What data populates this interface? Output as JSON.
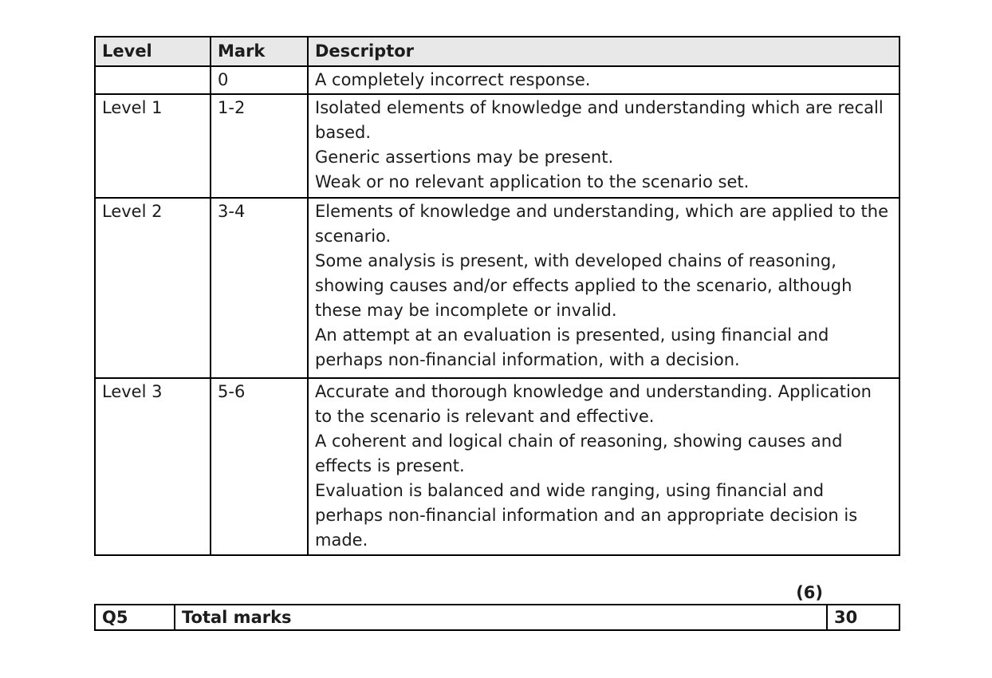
{
  "colors": {
    "page_background": "#ffffff",
    "header_row_background": "#e8e8e8",
    "border": "#000000",
    "text": "#1c1c1c"
  },
  "rubric_table": {
    "headers": [
      "Level",
      "Mark",
      "Descriptor"
    ],
    "rows": [
      {
        "level": "",
        "mark": "0",
        "descriptor": [
          "A completely incorrect response."
        ]
      },
      {
        "level": "Level 1",
        "mark": "1-2",
        "descriptor": [
          "Isolated elements of knowledge and understanding which are recall based.",
          "Generic assertions may be present.",
          "Weak or no relevant application to the scenario set."
        ]
      },
      {
        "level": "Level 2",
        "mark": "3-4",
        "descriptor": [
          "Elements of knowledge and understanding, which are applied to the scenario.",
          "Some analysis is present, with developed chains of reasoning, showing causes and/or effects applied to the scenario, although these may be incomplete or invalid.",
          "An attempt at an evaluation is presented, using financial and perhaps non-financial information, with a decision."
        ]
      },
      {
        "level": "Level 3",
        "mark": "5-6",
        "descriptor": [
          "Accurate and thorough knowledge and understanding.  Application to the scenario is relevant and effective.",
          "A coherent and logical chain of reasoning, showing causes and effects is present.",
          "Evaluation is balanced and wide ranging, using financial and perhaps non-financial information and an appropriate decision is made."
        ]
      }
    ]
  },
  "marks_note": "(6)",
  "total_row": {
    "question": "Q5",
    "label": "Total marks",
    "value": "30"
  }
}
